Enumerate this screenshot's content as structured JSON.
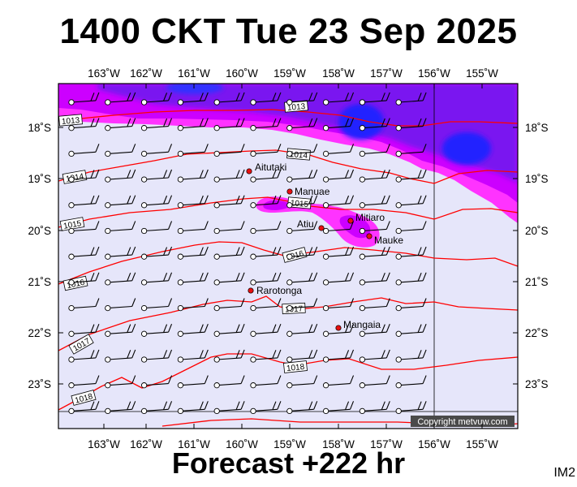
{
  "header": {
    "title": "1400 CKT Tue 23 Sep 2025"
  },
  "footer": {
    "forecast": "Forecast +222 hr",
    "product_code": "IM2"
  },
  "map": {
    "copyright": "Copyright metvuw.com",
    "top_axis_labels": [
      "163˚W",
      "162˚W",
      "161˚W",
      "160˚W",
      "159˚W",
      "158˚W",
      "157˚W",
      "156˚W",
      "155˚W"
    ],
    "bottom_axis_labels": [
      "163˚W",
      "162˚W",
      "161˚W",
      "160˚W",
      "159˚W",
      "158˚W",
      "157˚W",
      "156˚W",
      "155˚W"
    ],
    "left_axis_labels": [
      "18˚S",
      "19˚S",
      "20˚S",
      "21˚S",
      "22˚S",
      "23˚S"
    ],
    "right_axis_labels": [
      "18˚S",
      "19˚S",
      "20˚S",
      "21˚S",
      "22˚S",
      "23˚S"
    ],
    "places": [
      {
        "name": "Aitutaki"
      },
      {
        "name": "Manuae"
      },
      {
        "name": "Mitiaro"
      },
      {
        "name": "Atiu"
      },
      {
        "name": "Mauke"
      },
      {
        "name": "Rarotonga"
      },
      {
        "name": "Mangaia"
      }
    ],
    "isobar_labels": [
      "1013",
      "1014",
      "1014",
      "1015",
      "1015",
      "1016",
      "1016",
      "1017",
      "1017",
      "1018",
      "1018"
    ],
    "colors": {
      "background": "#e6e6fa",
      "isobar": "#ff0000",
      "rain_light": "#ff33ff",
      "rain_medium": "#cc00ff",
      "rain_heavy": "#7a14f0",
      "rain_extreme": "#2222ff",
      "place_dot": "#e81010"
    }
  }
}
